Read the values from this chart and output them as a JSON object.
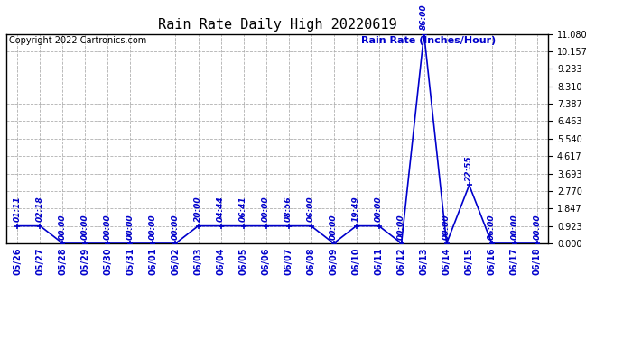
{
  "title": "Rain Rate Daily High 20220619",
  "copyright": "Copyright 2022 Cartronics.com",
  "legend_label": "Rain Rate (Inches/Hour)",
  "line_color": "#0000cc",
  "bg_color": "#ffffff",
  "grid_color": "#b0b0b0",
  "ylim": [
    0,
    11.08
  ],
  "yticks": [
    0.0,
    0.923,
    1.847,
    2.77,
    3.693,
    4.617,
    5.54,
    6.463,
    7.387,
    8.31,
    9.233,
    10.157,
    11.08
  ],
  "x_labels": [
    "05/26",
    "05/27",
    "05/28",
    "05/29",
    "05/30",
    "05/31",
    "06/01",
    "06/02",
    "06/03",
    "06/04",
    "06/05",
    "06/06",
    "06/07",
    "06/08",
    "06/09",
    "06/10",
    "06/11",
    "06/12",
    "06/13",
    "06/14",
    "06/15",
    "06/16",
    "06/17",
    "06/18"
  ],
  "data_values": [
    0.923,
    0.923,
    0.0,
    0.0,
    0.0,
    0.0,
    0.0,
    0.0,
    0.923,
    0.923,
    0.923,
    0.923,
    0.923,
    0.923,
    0.0,
    0.923,
    0.923,
    0.0,
    11.08,
    0.0,
    3.08,
    0.0,
    0.0,
    0.0
  ],
  "data_times": [
    "01:11",
    "02:18",
    "00:00",
    "00:00",
    "00:00",
    "00:00",
    "00:00",
    "00:00",
    "20:00",
    "04:44",
    "06:41",
    "00:00",
    "08:56",
    "06:00",
    "00:00",
    "19:49",
    "00:00",
    "00:00",
    "86:00",
    "00:00",
    "22:55",
    "06:00",
    "00:00",
    "00:00"
  ],
  "title_fontsize": 11,
  "annot_fontsize": 6.5,
  "tick_fontsize": 7,
  "copy_fontsize": 7,
  "legend_fontsize": 8
}
